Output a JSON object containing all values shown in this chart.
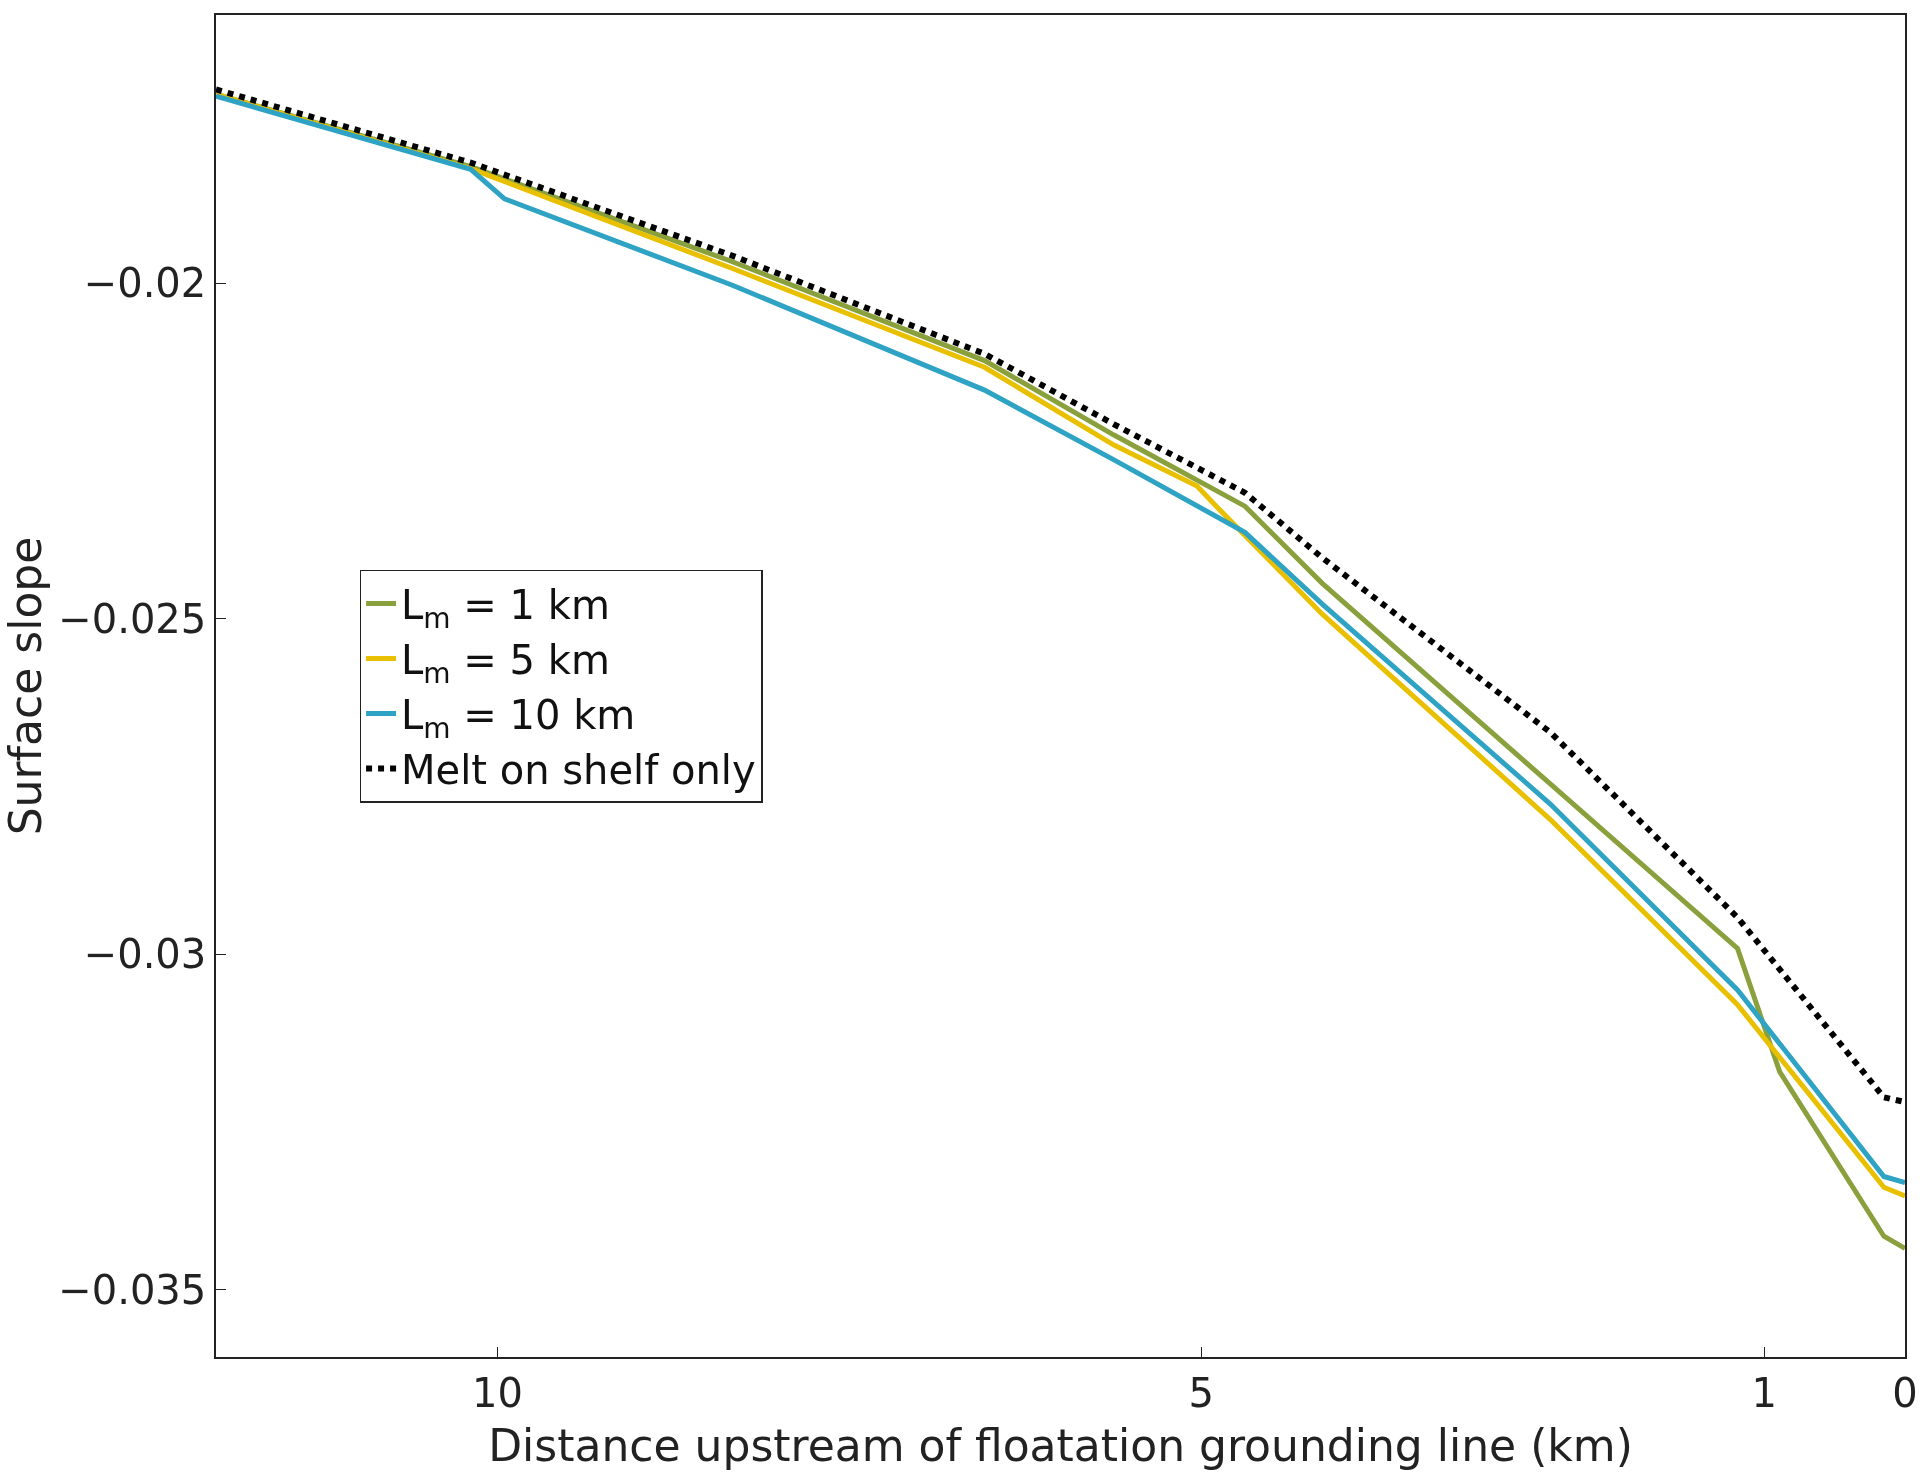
{
  "chart_data": {
    "type": "line",
    "xlabel": "Distance upstream of floatation grounding line (km)",
    "ylabel": "Surface slope",
    "xlim": [
      12,
      0
    ],
    "xticks": [
      10,
      5,
      1,
      0
    ],
    "ylim": [
      -0.036,
      -0.016
    ],
    "yticks": [
      -0.02,
      -0.025,
      -0.03,
      -0.035
    ],
    "legend": "left",
    "marker": "none",
    "series": [
      {
        "name": "L$_{m}$ = 1 km",
        "color": "#8aa03c",
        "line_style": "solid",
        "x": [
          12,
          10.19,
          8.34,
          6.54,
          5.62,
          4.69,
          4.14,
          2.52,
          1.19,
          0.89,
          0.15,
          0
        ],
        "values": [
          -0.01718,
          -0.01826,
          -0.01967,
          -0.02115,
          -0.02226,
          -0.02332,
          -0.02447,
          -0.02746,
          -0.02991,
          -0.03175,
          -0.0342,
          -0.03438
        ]
      },
      {
        "name": "L$_{m}$ = 5 km",
        "color": "#e8c000",
        "line_style": "solid",
        "x": [
          12,
          10.19,
          8.34,
          6.54,
          5.62,
          5.03,
          4.88,
          4.14,
          2.52,
          1.19,
          0.15,
          0
        ],
        "values": [
          -0.01718,
          -0.01829,
          -0.01977,
          -0.02125,
          -0.02241,
          -0.02302,
          -0.02335,
          -0.02493,
          -0.02799,
          -0.03075,
          -0.03347,
          -0.0336
        ]
      },
      {
        "name": "L$_{m}$ = 10 km",
        "color": "#2ea3c4",
        "line_style": "solid",
        "x": [
          12,
          10.19,
          9.95,
          8.34,
          6.54,
          5.62,
          4.69,
          4.14,
          2.52,
          1.19,
          0.15,
          0
        ],
        "values": [
          -0.01721,
          -0.0183,
          -0.01874,
          -0.02002,
          -0.02159,
          -0.02263,
          -0.02371,
          -0.02478,
          -0.02776,
          -0.03053,
          -0.03331,
          -0.0334
        ]
      },
      {
        "name": "Melt on shelf only",
        "color": "#000000",
        "line_style": "dotted",
        "x": [
          12,
          10.19,
          8.34,
          6.54,
          5.62,
          4.69,
          4.14,
          2.52,
          1.19,
          0.15,
          0
        ],
        "values": [
          -0.01711,
          -0.0182,
          -0.01958,
          -0.02105,
          -0.0221,
          -0.02312,
          -0.02409,
          -0.02669,
          -0.02945,
          -0.03213,
          -0.0322
        ]
      }
    ]
  }
}
